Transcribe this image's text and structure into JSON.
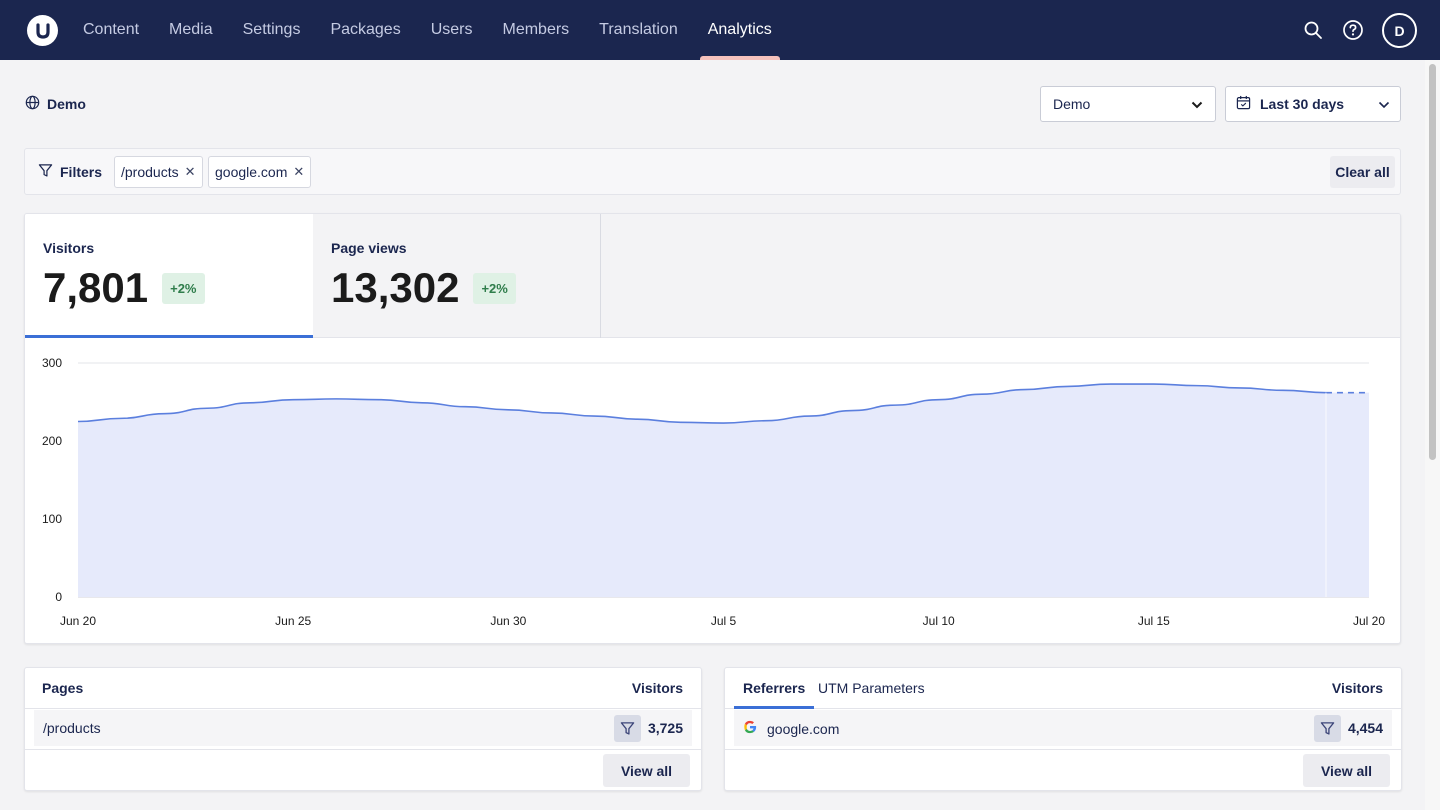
{
  "nav": {
    "items": [
      {
        "label": "Content",
        "active": false
      },
      {
        "label": "Media",
        "active": false
      },
      {
        "label": "Settings",
        "active": false
      },
      {
        "label": "Packages",
        "active": false
      },
      {
        "label": "Users",
        "active": false
      },
      {
        "label": "Members",
        "active": false
      },
      {
        "label": "Translation",
        "active": false
      },
      {
        "label": "Analytics",
        "active": true
      }
    ],
    "avatar_initial": "D"
  },
  "header": {
    "site_name": "Demo",
    "site_select_value": "Demo",
    "range_select_value": "Last 30 days"
  },
  "filters": {
    "label": "Filters",
    "chips": [
      "/products",
      "google.com"
    ],
    "clear_label": "Clear all"
  },
  "metrics": [
    {
      "title": "Visitors",
      "value": "7,801",
      "delta": "+2%",
      "active": true
    },
    {
      "title": "Page views",
      "value": "13,302",
      "delta": "+2%",
      "active": false
    }
  ],
  "chart_data": {
    "type": "area",
    "x": [
      "Jun 20",
      "Jun 21",
      "Jun 22",
      "Jun 23",
      "Jun 24",
      "Jun 25",
      "Jun 26",
      "Jun 27",
      "Jun 28",
      "Jun 29",
      "Jun 30",
      "Jul 1",
      "Jul 2",
      "Jul 3",
      "Jul 4",
      "Jul 5",
      "Jul 6",
      "Jul 7",
      "Jul 8",
      "Jul 9",
      "Jul 10",
      "Jul 11",
      "Jul 12",
      "Jul 13",
      "Jul 14",
      "Jul 15",
      "Jul 16",
      "Jul 17",
      "Jul 18",
      "Jul 19",
      "Jul 20"
    ],
    "series": [
      {
        "values": [
          225,
          229,
          235,
          242,
          249,
          253,
          254,
          253,
          249,
          244,
          240,
          236,
          232,
          228,
          224,
          223,
          226,
          232,
          239,
          246,
          253,
          260,
          266,
          270,
          273,
          273,
          271,
          268,
          265,
          262,
          262
        ]
      }
    ],
    "xticks": [
      "Jun 20",
      "Jun 25",
      "Jun 30",
      "Jul 5",
      "Jul 10",
      "Jul 15",
      "Jul 20"
    ],
    "yticks": [
      0,
      100,
      200,
      300
    ],
    "ylim": [
      0,
      300
    ],
    "grid": true,
    "dashed_last_segment": true,
    "line_color": "#5b7fde",
    "fill_color": "#e6eafb"
  },
  "pages": {
    "title": "Pages",
    "count_header": "Visitors",
    "rows": [
      {
        "name": "/products",
        "count": "3,725"
      }
    ],
    "view_all": "View all"
  },
  "referrers": {
    "tabs": [
      "Referrers",
      "UTM Parameters"
    ],
    "count_header": "Visitors",
    "rows": [
      {
        "name": "google.com",
        "icon": "google-icon",
        "count": "4,454"
      }
    ],
    "view_all": "View all"
  },
  "colors": {
    "nav_bg": "#1b264f",
    "accent_blue": "#3b6fd6",
    "active_underline": "#f5c1bc",
    "delta_bg": "#dff1e5",
    "delta_text": "#2f7d4b"
  }
}
